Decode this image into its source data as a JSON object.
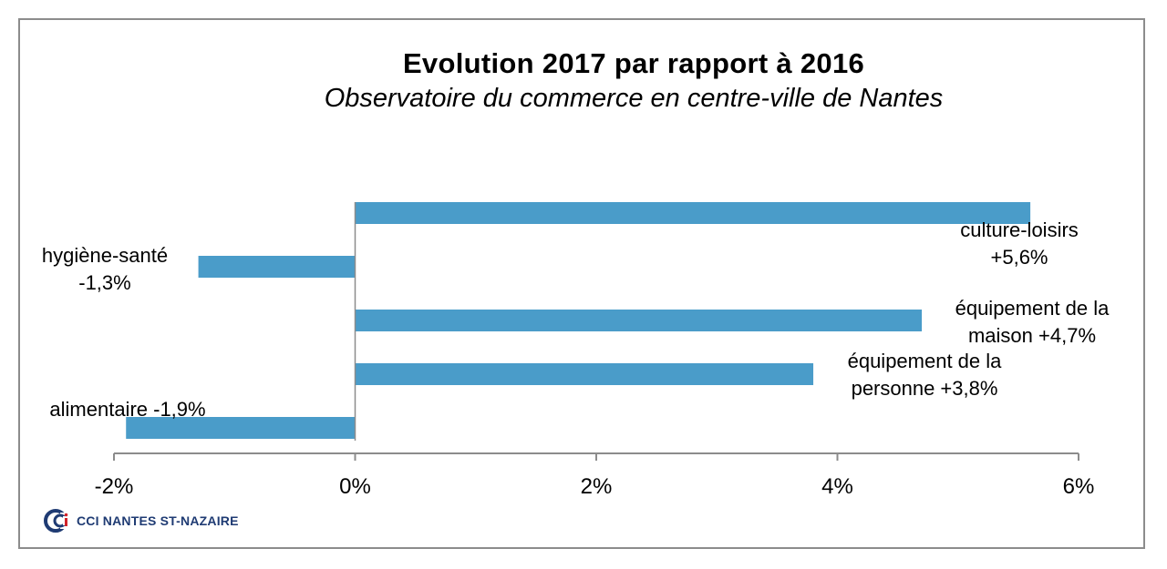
{
  "chart_data": {
    "type": "bar",
    "orientation": "horizontal",
    "title": "Evolution 2017 par rapport à 2016",
    "subtitle": "Observatoire du commerce en centre-ville de Nantes",
    "categories": [
      "culture-loisirs",
      "hygiène-santé",
      "équipement de la maison",
      "équipement de la personne",
      "alimentaire"
    ],
    "values": [
      5.6,
      -1.3,
      4.7,
      3.8,
      -1.9
    ],
    "data_labels": [
      [
        "culture-loisirs",
        "+5,6%"
      ],
      [
        "hygiène-santé",
        "-1,3%"
      ],
      [
        "équipement de la",
        "maison +4,7%"
      ],
      [
        "équipement de la",
        "personne +3,8%"
      ],
      [
        "alimentaire -1,9%"
      ]
    ],
    "xlim": [
      -2,
      6
    ],
    "xticks": [
      "-2%",
      "0%",
      "2%",
      "4%",
      "6%"
    ],
    "grid": false,
    "bar_color": "#4a9cc9",
    "axis_color": "#8c8c8c"
  },
  "logo": {
    "text": "CCI NANTES ST-NAZAIRE",
    "color": "#1f3b73"
  }
}
